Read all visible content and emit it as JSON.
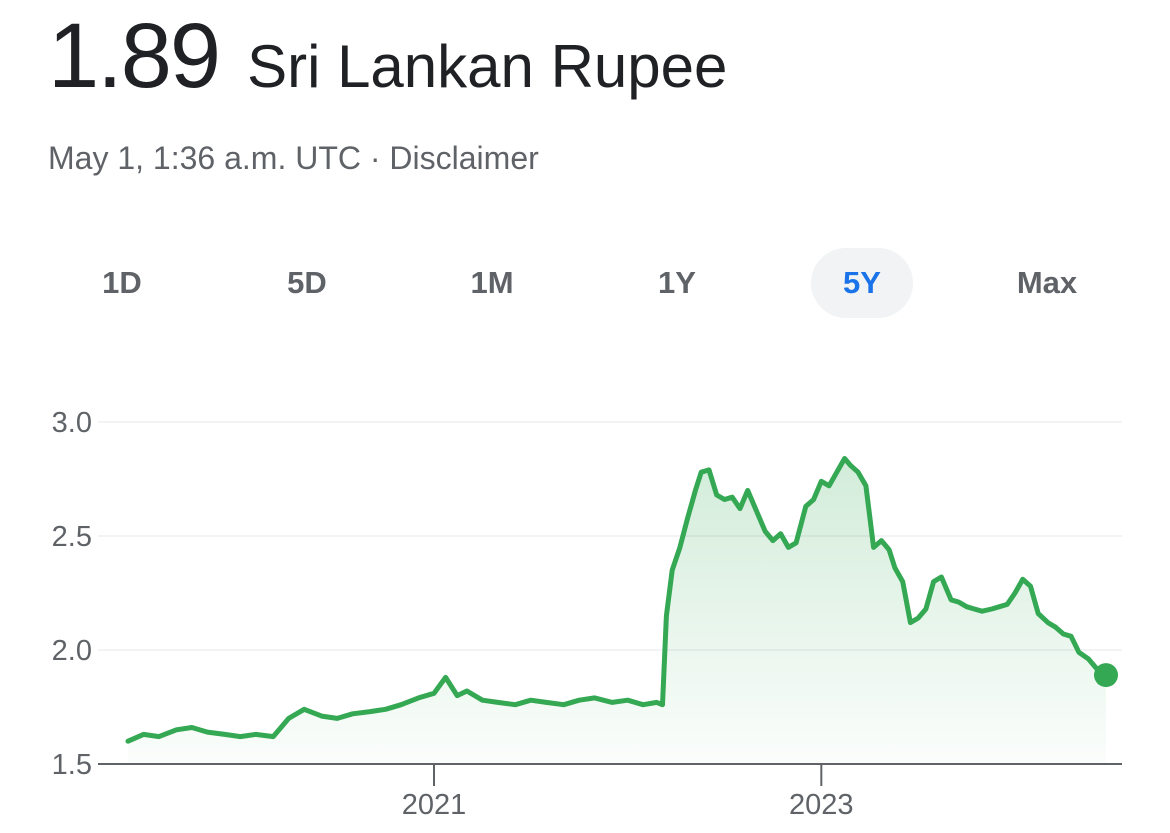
{
  "header": {
    "price": "1.89",
    "currency": "Sri Lankan Rupee"
  },
  "subline": {
    "timestamp": "May 1, 1:36 a.m. UTC",
    "separator": " · ",
    "disclaimer": "Disclaimer"
  },
  "tabs": [
    {
      "label": "1D",
      "active": false
    },
    {
      "label": "5D",
      "active": false
    },
    {
      "label": "1M",
      "active": false
    },
    {
      "label": "1Y",
      "active": false
    },
    {
      "label": "5Y",
      "active": true
    },
    {
      "label": "Max",
      "active": false
    }
  ],
  "colors": {
    "line": "#34a853",
    "active_tab": "#1a73e8",
    "grid": "#f1f3f4",
    "axis": "#5f6368"
  },
  "chart_data": {
    "type": "area",
    "x_ticks": [
      {
        "label": "2021",
        "value": 2021.0
      },
      {
        "label": "2023",
        "value": 2023.0
      }
    ],
    "y_ticks": [
      1.5,
      2.0,
      2.5,
      3.0
    ],
    "ylim": [
      1.5,
      3.0
    ],
    "xlim": [
      2019.42,
      2024.47
    ],
    "grid": true,
    "last_value": 1.89,
    "series": [
      {
        "x": [
          2019.42,
          2019.5,
          2019.58,
          2019.67,
          2019.75,
          2019.83,
          2019.92,
          2020.0,
          2020.08,
          2020.17,
          2020.25,
          2020.33,
          2020.42,
          2020.5,
          2020.58,
          2020.67,
          2020.75,
          2020.83,
          2020.92,
          2021.0,
          2021.06,
          2021.12,
          2021.17,
          2021.25,
          2021.33,
          2021.42,
          2021.5,
          2021.58,
          2021.67,
          2021.75,
          2021.83,
          2021.92,
          2022.0,
          2022.08,
          2022.15,
          2022.18,
          2022.2,
          2022.23,
          2022.27,
          2022.31,
          2022.35,
          2022.38,
          2022.42,
          2022.46,
          2022.5,
          2022.54,
          2022.58,
          2022.62,
          2022.67,
          2022.71,
          2022.75,
          2022.79,
          2022.83,
          2022.87,
          2022.92,
          2022.96,
          2023.0,
          2023.04,
          2023.08,
          2023.12,
          2023.15,
          2023.19,
          2023.23,
          2023.27,
          2023.31,
          2023.35,
          2023.38,
          2023.42,
          2023.46,
          2023.5,
          2023.54,
          2023.58,
          2023.62,
          2023.67,
          2023.71,
          2023.75,
          2023.79,
          2023.83,
          2023.88,
          2023.92,
          2023.96,
          2024.0,
          2024.04,
          2024.08,
          2024.12,
          2024.17,
          2024.21,
          2024.25,
          2024.29,
          2024.33,
          2024.38,
          2024.42,
          2024.47
        ],
        "y": [
          1.6,
          1.63,
          1.62,
          1.65,
          1.66,
          1.64,
          1.63,
          1.62,
          1.63,
          1.62,
          1.7,
          1.74,
          1.71,
          1.7,
          1.72,
          1.73,
          1.74,
          1.76,
          1.79,
          1.81,
          1.88,
          1.8,
          1.82,
          1.78,
          1.77,
          1.76,
          1.78,
          1.77,
          1.76,
          1.78,
          1.79,
          1.77,
          1.78,
          1.76,
          1.77,
          1.76,
          2.15,
          2.35,
          2.45,
          2.58,
          2.7,
          2.78,
          2.79,
          2.68,
          2.66,
          2.67,
          2.62,
          2.7,
          2.6,
          2.52,
          2.48,
          2.51,
          2.45,
          2.47,
          2.63,
          2.66,
          2.74,
          2.72,
          2.78,
          2.84,
          2.81,
          2.78,
          2.72,
          2.45,
          2.48,
          2.44,
          2.36,
          2.3,
          2.12,
          2.14,
          2.18,
          2.3,
          2.32,
          2.22,
          2.21,
          2.19,
          2.18,
          2.17,
          2.18,
          2.19,
          2.2,
          2.25,
          2.31,
          2.28,
          2.16,
          2.12,
          2.1,
          2.07,
          2.06,
          1.99,
          1.96,
          1.92,
          1.89
        ]
      }
    ]
  }
}
